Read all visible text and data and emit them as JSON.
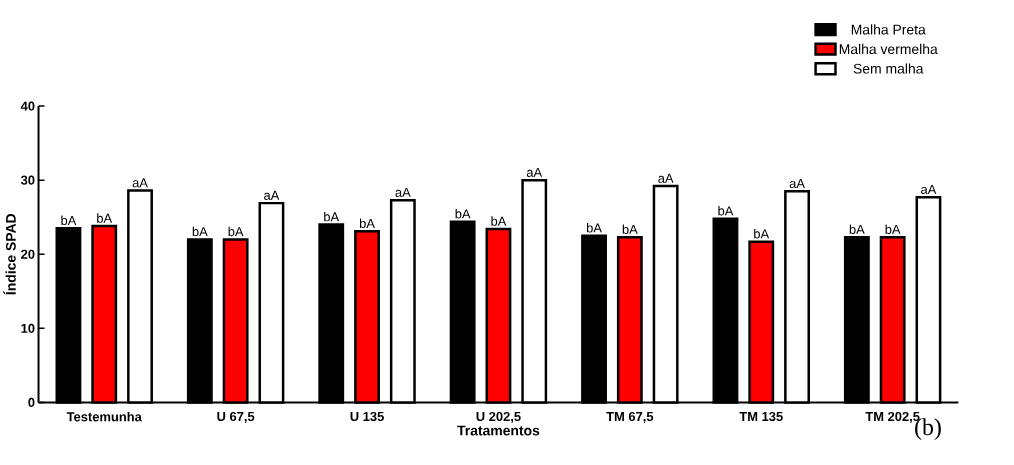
{
  "chart_data": {
    "type": "bar",
    "xlabel": "Tratamentos",
    "ylabel": "Índice SPAD",
    "categories": [
      "Testemunha",
      "U 67,5",
      "U 135",
      "U 202,5",
      "TM 67,5",
      "TM 135",
      "TM 202,5"
    ],
    "series": [
      {
        "name": "Malha Preta",
        "color": "#000000",
        "values": [
          23.5,
          22.0,
          24.0,
          24.4,
          22.5,
          24.8,
          22.3
        ],
        "value_labels": [
          "bA",
          "bA",
          "bA",
          "bA",
          "bA",
          "bA",
          "bA"
        ]
      },
      {
        "name": "Malha vermelha",
        "color": "#ff0000",
        "values": [
          23.8,
          22.0,
          23.1,
          23.4,
          22.3,
          21.7,
          22.3
        ],
        "value_labels": [
          "bA",
          "bA",
          "bA",
          "bA",
          "bA",
          "bA",
          "bA"
        ]
      },
      {
        "name": "Sem malha",
        "color": "#ffffff",
        "values": [
          28.6,
          26.9,
          27.3,
          30.0,
          29.2,
          28.5,
          27.7
        ],
        "value_labels": [
          "aA",
          "aA",
          "aA",
          "aA",
          "aA",
          "aA",
          "aA"
        ]
      }
    ],
    "ylim": [
      0,
      40
    ],
    "yticks": [
      0,
      10,
      20,
      30,
      40
    ],
    "legend": "top right",
    "annotations": [
      "(b)"
    ]
  }
}
